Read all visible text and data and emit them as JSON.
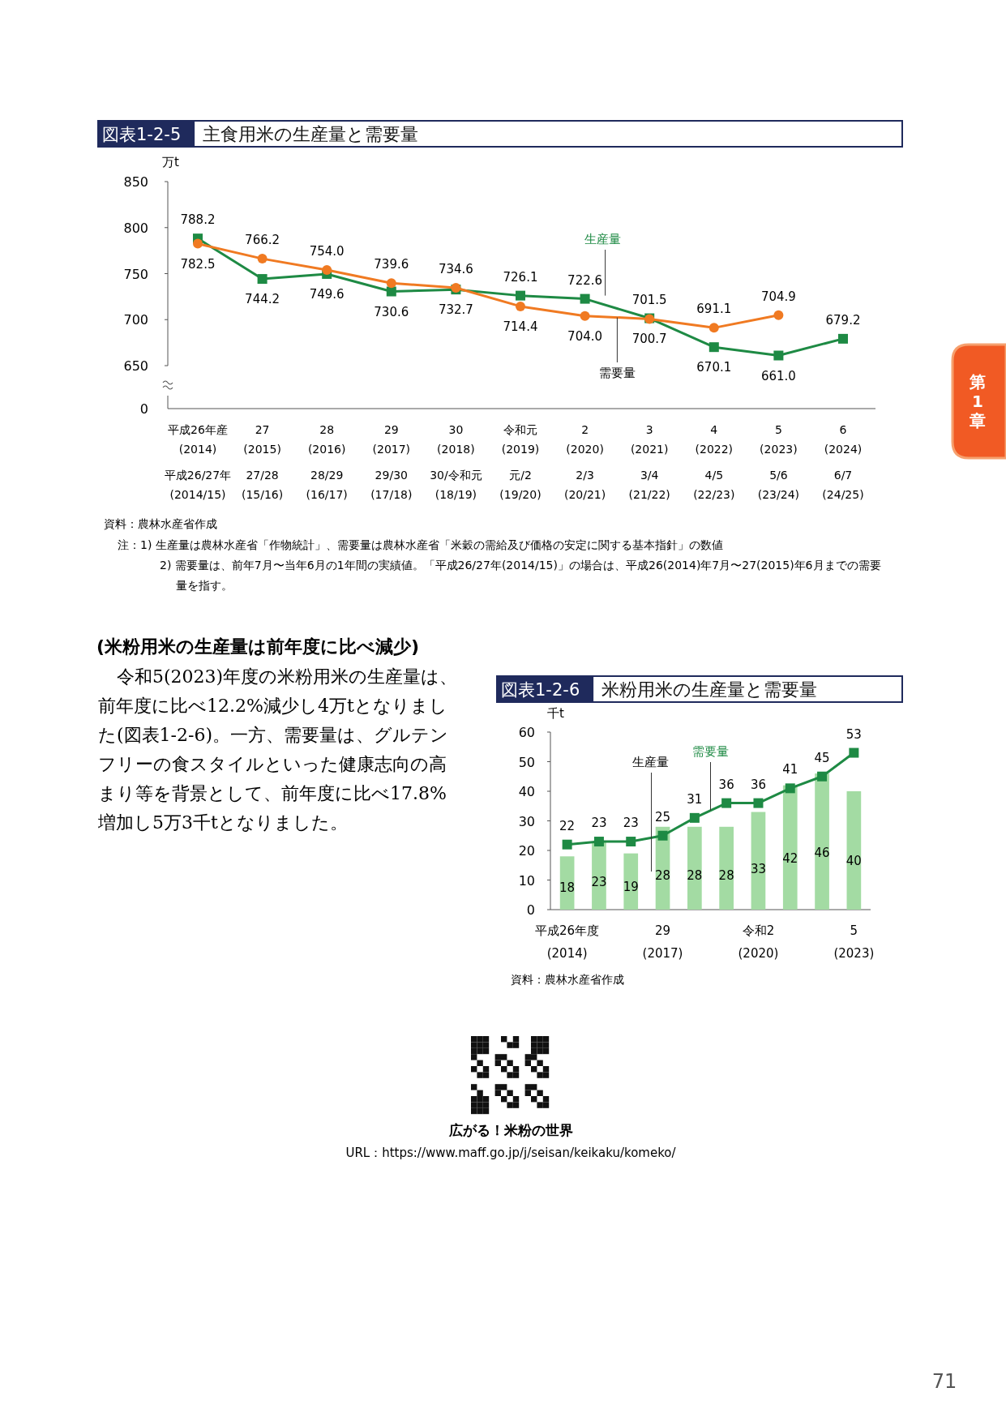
{
  "chart_data": [
    {
      "type": "line",
      "title": "図表1-2-5",
      "subtitle": "主食用米の生産量と需要量",
      "ylabel": "万t",
      "categories": [
        "平成26年産\n(2014)\n平成26/27年\n(2014/15)",
        "27\n(2015)\n27/28\n(15/16)",
        "28\n(2016)\n28/29\n(16/17)",
        "29\n(2017)\n29/30\n(17/18)",
        "30\n(2018)\n30/令和元\n(18/19)",
        "令和元\n(2019)\n元/2\n(19/20)",
        "2\n(2020)\n2/3\n(20/21)",
        "3\n(2021)\n3/4\n(21/22)",
        "4\n(2022)\n4/5\n(22/23)",
        "5\n(2023)\n5/6\n(23/24)",
        "6\n(2024)\n6/7\n(24/25)"
      ],
      "series": [
        {
          "name": "生産量",
          "color": "#1e8a44",
          "marker": "square",
          "values": [
            788.2,
            744.2,
            749.6,
            730.6,
            732.7,
            726.1,
            722.6,
            701.5,
            670.1,
            661.0,
            679.2
          ],
          "value_labels": [
            "788.2",
            "744.2",
            "749.6",
            "730.6",
            "732.7",
            "726.1",
            "722.6",
            "701.5",
            "670.1",
            "661.0",
            "679.2"
          ]
        },
        {
          "name": "需要量",
          "color": "#f07a22",
          "marker": "circle",
          "values": [
            782.5,
            766.2,
            754.0,
            739.6,
            734.6,
            714.4,
            704.0,
            700.7,
            691.1,
            704.9,
            null
          ],
          "value_labels": [
            "782.5",
            "766.2",
            "754.0",
            "739.6",
            "734.6",
            "714.4",
            "704.0",
            "700.7",
            "691.1",
            "704.9",
            null
          ]
        }
      ],
      "ylim": [
        650,
        850
      ],
      "yticks": [
        650,
        700,
        750,
        800,
        850
      ],
      "annotations": [
        "0",
        "資料：農林水産省作成",
        "注：1) 生産量は農林水産省「作物統計」、需要量は農林水産省「米穀の需給及び価格の安定に関する基本指針」の数値",
        "2) 需要量は、前年7月〜当年6月の1年間の実績値。「平成26/27年(2014/15)」の場合は、平成26(2014)年7月〜27(2015)年6月までの需要量を指す。"
      ]
    },
    {
      "type": "other",
      "title": "(米粉用米の生産量は前年度に比べ減少)",
      "annotations": [
        "令和5(2023)年度の米粉用米の生産量は、",
        "前年度に比べ12.2%減少し4万tとなりまし",
        "た(図表1-2-6)。一方、需要量は、グルテン",
        "フリーの食スタイルといった健康志向の高",
        "まり等を背景として、前年度に比べ17.8%",
        "増加し5万3千tとなりました。",
        "広がる！米粉の世界",
        "URL：https://www.maff.go.jp/j/seisan/keikaku/komeko/",
        "71",
        "第\n1\n章"
      ]
    },
    {
      "type": "bar",
      "title": "図表1-2-6",
      "subtitle": "米粉用米の生産量と需要量",
      "ylabel": "千t",
      "categories": [
        "平成26年度\n(2014)",
        null,
        null,
        "29\n(2017)",
        null,
        null,
        "令和2\n(2020)",
        null,
        null,
        "5\n(2023)"
      ],
      "series": [
        {
          "name": "生産量",
          "type": "bar",
          "color": "#a3dba3",
          "values": [
            18,
            23,
            19,
            28,
            28,
            28,
            33,
            42,
            46,
            40
          ]
        },
        {
          "name": "需要量",
          "type": "line",
          "color": "#1e8a44",
          "marker": "square",
          "values": [
            22,
            23,
            23,
            25,
            31,
            36,
            36,
            41,
            45,
            53
          ]
        }
      ],
      "ylim": [
        0,
        60
      ],
      "yticks": [
        0,
        10,
        20,
        30,
        40,
        50,
        60
      ],
      "data_labels": true,
      "annotations": [
        "資料：農林水産省作成"
      ]
    }
  ]
}
